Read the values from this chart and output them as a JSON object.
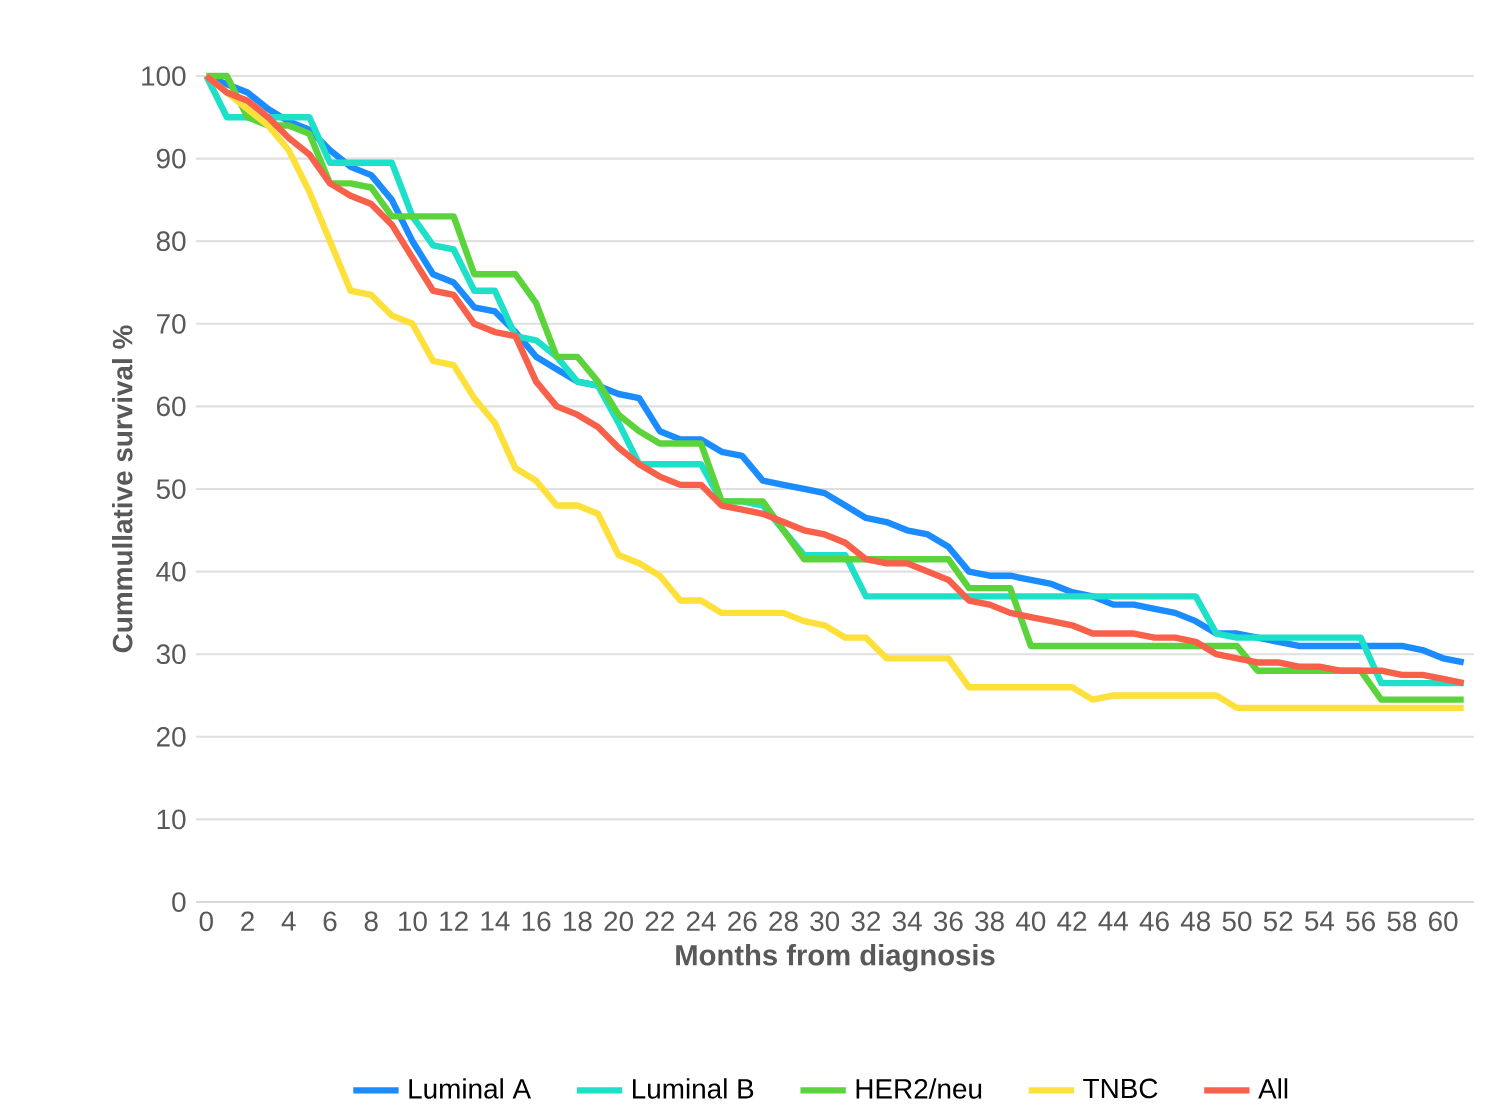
{
  "chart_data": {
    "type": "line",
    "xlabel": "Months from diagnosis",
    "ylabel": "Cummullative survival %",
    "x": [
      0,
      1,
      2,
      3,
      4,
      5,
      6,
      7,
      8,
      9,
      10,
      11,
      12,
      13,
      14,
      15,
      16,
      17,
      18,
      19,
      20,
      21,
      22,
      23,
      24,
      25,
      26,
      27,
      28,
      29,
      30,
      31,
      32,
      33,
      34,
      35,
      36,
      37,
      38,
      39,
      40,
      41,
      42,
      43,
      44,
      45,
      46,
      47,
      48,
      49,
      50,
      51,
      52,
      53,
      54,
      55,
      56,
      57,
      58,
      59,
      60,
      61
    ],
    "xlim": [
      -0.5,
      61.5
    ],
    "xticks": [
      0,
      2,
      4,
      6,
      8,
      10,
      12,
      14,
      16,
      18,
      20,
      22,
      24,
      26,
      28,
      30,
      32,
      34,
      36,
      38,
      40,
      42,
      44,
      46,
      48,
      50,
      52,
      54,
      56,
      58,
      60
    ],
    "ylim": [
      0,
      100
    ],
    "yticks": [
      0,
      10,
      20,
      30,
      40,
      50,
      60,
      70,
      80,
      90,
      100
    ],
    "grid": "y",
    "legend": "bottom",
    "marker": "none",
    "line_style": "solid",
    "series": [
      {
        "name": "Luminal A",
        "color": "#1a8cff",
        "values": [
          100,
          99,
          98,
          96,
          94.5,
          93.5,
          91,
          89,
          88,
          85,
          80,
          76,
          75,
          72,
          71.5,
          69,
          66,
          64.5,
          63,
          62.5,
          61.5,
          61,
          57,
          56,
          56,
          54.5,
          54,
          51,
          50.5,
          50,
          49.5,
          48,
          46.5,
          46,
          45,
          44.5,
          43,
          40,
          39.5,
          39.5,
          39,
          38.5,
          37.5,
          37,
          36,
          36,
          35.5,
          35,
          34,
          32.5,
          32.5,
          32,
          31.5,
          31,
          31,
          31,
          31,
          31,
          31,
          30.5,
          29.5,
          29
        ]
      },
      {
        "name": "Luminal B",
        "color": "#1de0c8",
        "values": [
          100,
          95,
          95,
          95,
          95,
          95,
          89.5,
          89.5,
          89.5,
          89.5,
          83,
          79.5,
          79,
          74,
          74,
          68.5,
          68,
          66,
          63,
          62.5,
          58,
          53,
          53,
          53,
          53,
          48.5,
          48.5,
          48,
          45,
          42,
          42,
          42,
          37,
          37,
          37,
          37,
          37,
          37,
          37,
          37,
          37,
          37,
          37,
          37,
          37,
          37,
          37,
          37,
          37,
          32.5,
          32,
          32,
          32,
          32,
          32,
          32,
          32,
          26.5,
          26.5,
          26.5,
          26.5,
          26.5
        ]
      },
      {
        "name": "HER2/neu",
        "color": "#5bd33a",
        "values": [
          100,
          100,
          95,
          94,
          94,
          93,
          87,
          87,
          86.5,
          83,
          83,
          83,
          83,
          76,
          76,
          76,
          72.5,
          66,
          66,
          63,
          59,
          57,
          55.5,
          55.5,
          55.5,
          48.5,
          48.5,
          48.5,
          45,
          41.5,
          41.5,
          41.5,
          41.5,
          41.5,
          41.5,
          41.5,
          41.5,
          38,
          38,
          38,
          31,
          31,
          31,
          31,
          31,
          31,
          31,
          31,
          31,
          31,
          31,
          28,
          28,
          28,
          28,
          28,
          28,
          24.5,
          24.5,
          24.5,
          24.5,
          24.5
        ]
      },
      {
        "name": "TNBC",
        "color": "#fde03a",
        "values": [
          100,
          98,
          96,
          94,
          91,
          86,
          80,
          74,
          73.5,
          71,
          70,
          65.5,
          65,
          61,
          58,
          52.5,
          51,
          48,
          48,
          47,
          42,
          41,
          39.5,
          36.5,
          36.5,
          35,
          35,
          35,
          35,
          34,
          33.5,
          32,
          32,
          29.5,
          29.5,
          29.5,
          29.5,
          26,
          26,
          26,
          26,
          26,
          26,
          24.5,
          25,
          25,
          25,
          25,
          25,
          25,
          23.5,
          23.5,
          23.5,
          23.5,
          23.5,
          23.5,
          23.5,
          23.5,
          23.5,
          23.5,
          23.5,
          23.5
        ]
      },
      {
        "name": "All",
        "color": "#f8604a",
        "values": [
          100,
          98,
          97,
          95,
          92.5,
          90.5,
          87,
          85.5,
          84.5,
          82,
          78,
          74,
          73.5,
          70,
          69,
          68.5,
          63,
          60,
          59,
          57.5,
          55,
          53,
          51.5,
          50.5,
          50.5,
          48,
          47.5,
          47,
          46,
          45,
          44.5,
          43.5,
          41.5,
          41,
          41,
          40,
          39,
          36.5,
          36,
          35,
          34.5,
          34,
          33.5,
          32.5,
          32.5,
          32.5,
          32,
          32,
          31.5,
          30,
          29.5,
          29,
          29,
          28.5,
          28.5,
          28,
          28,
          28,
          27.5,
          27.5,
          27,
          26.5
        ]
      }
    ]
  }
}
